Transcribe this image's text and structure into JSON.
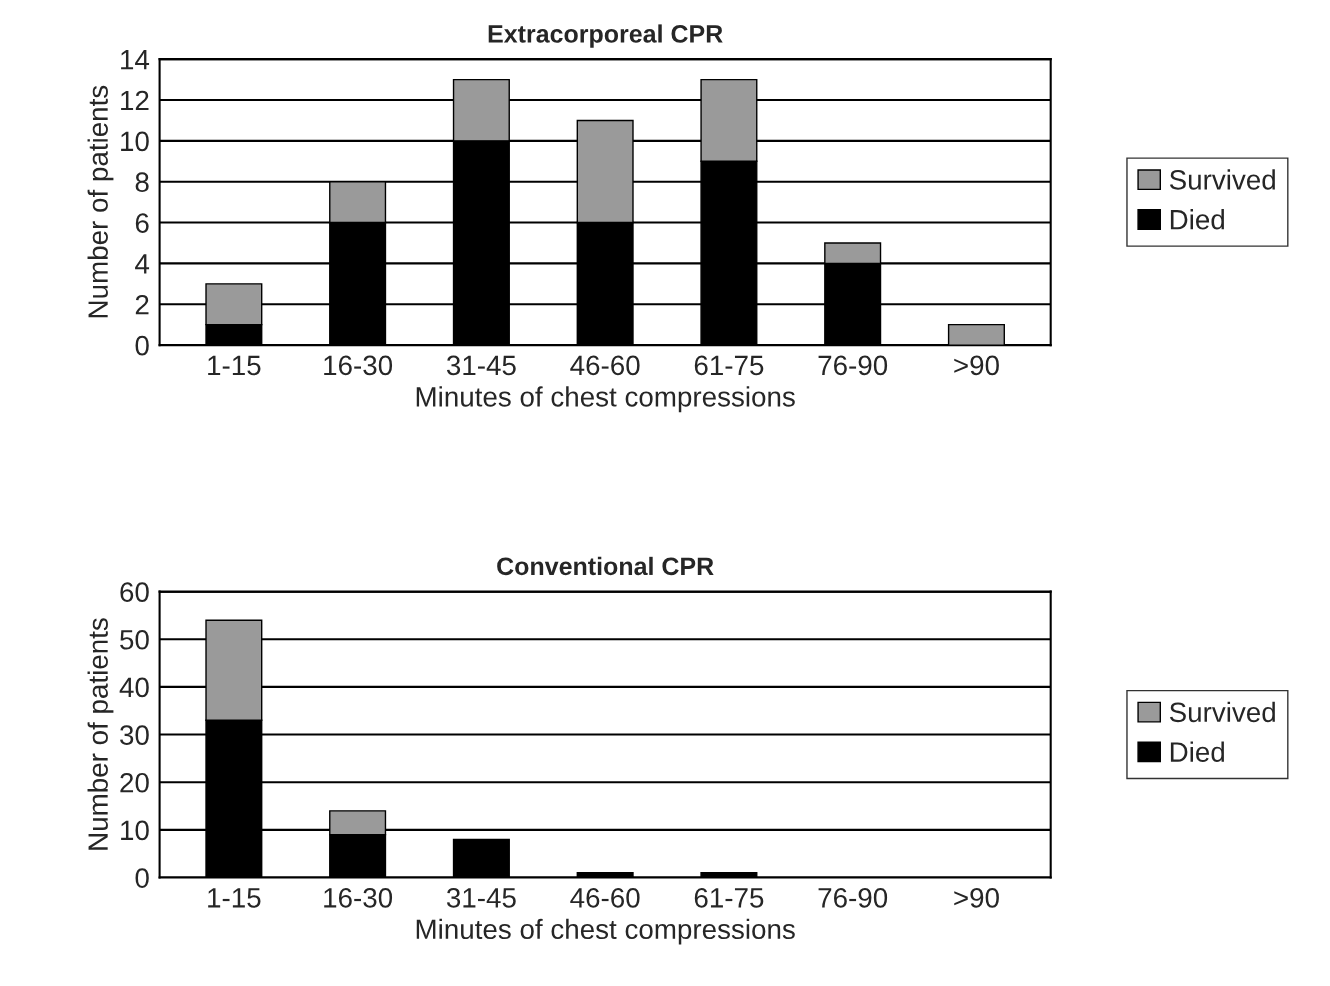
{
  "chart_data": [
    {
      "type": "bar",
      "title": "Extracorporeal CPR",
      "xlabel": "Minutes of chest compressions",
      "ylabel": "Number of patients",
      "categories": [
        "1-15",
        "16-30",
        "31-45",
        "46-60",
        "61-75",
        "76-90",
        ">90"
      ],
      "stacked": true,
      "series": [
        {
          "name": "Died",
          "color": "#000000",
          "values": [
            1,
            6,
            10,
            6,
            9,
            4,
            0
          ]
        },
        {
          "name": "Survived",
          "color": "#9a9a9a",
          "values": [
            2,
            2,
            3,
            5,
            4,
            1,
            1
          ]
        }
      ],
      "ylim": [
        0,
        14
      ],
      "yticks": [
        0,
        2,
        4,
        6,
        8,
        10,
        12,
        14
      ],
      "grid": "y",
      "legend": "right"
    },
    {
      "type": "bar",
      "title": "Conventional CPR",
      "xlabel": "Minutes of chest compressions",
      "ylabel": "Number of patients",
      "categories": [
        "1-15",
        "16-30",
        "31-45",
        "46-60",
        "61-75",
        "76-90",
        ">90"
      ],
      "stacked": true,
      "series": [
        {
          "name": "Died",
          "color": "#000000",
          "values": [
            33,
            9,
            8,
            1,
            1,
            0,
            0
          ]
        },
        {
          "name": "Survived",
          "color": "#9a9a9a",
          "values": [
            21,
            5,
            0,
            0,
            0,
            0,
            0
          ]
        }
      ],
      "ylim": [
        0,
        60
      ],
      "yticks": [
        0,
        10,
        20,
        30,
        40,
        50,
        60
      ],
      "grid": "y",
      "legend": "right"
    }
  ]
}
